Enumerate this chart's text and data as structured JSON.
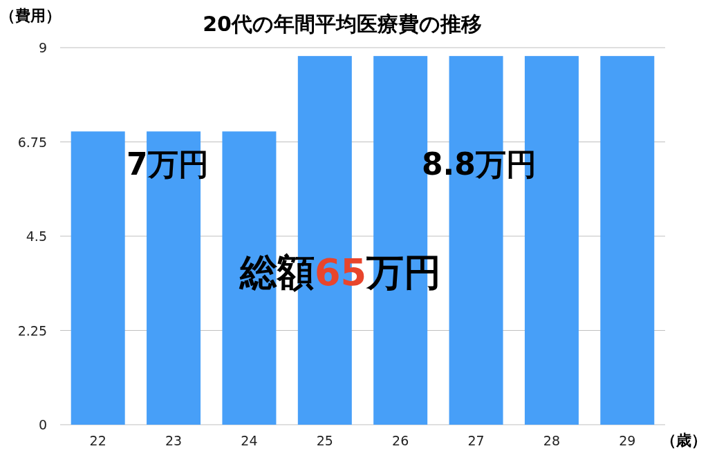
{
  "chart_data": {
    "type": "bar",
    "title": "20代の年間平均医療費の推移",
    "ylabel": "（費用）",
    "xlabel": "（歳）",
    "categories": [
      "22",
      "23",
      "24",
      "25",
      "26",
      "27",
      "28",
      "29"
    ],
    "values": [
      7,
      7,
      7,
      8.8,
      8.8,
      8.8,
      8.8,
      8.8
    ],
    "color": "#479ff8",
    "ylim": [
      0,
      9
    ],
    "yticks": [
      0,
      2.25,
      4.5,
      6.75,
      9
    ],
    "grid": "y",
    "annotations": [
      "7万円",
      "8.8万円",
      "総額",
      "65",
      "万円"
    ]
  }
}
